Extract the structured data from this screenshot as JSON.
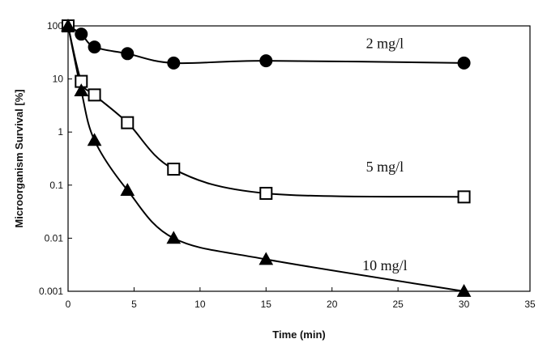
{
  "chart_data": {
    "type": "scatter",
    "title": "",
    "xlabel": "Time (min)",
    "ylabel": "Microorganism Survival [%]",
    "xlim": [
      0,
      35
    ],
    "ylim": [
      0.001,
      100
    ],
    "yscale": "log",
    "x_ticks": [
      "0",
      "5",
      "10",
      "15",
      "20",
      "25",
      "30",
      "35"
    ],
    "y_ticks": [
      "0.001",
      "0.01",
      "0.1",
      "1",
      "10",
      "100"
    ],
    "grid": false,
    "legend": "none",
    "series": [
      {
        "name": "2 mg/l",
        "marker": "circle-filled",
        "color": "#000000",
        "x": [
          0,
          1,
          2,
          4.5,
          8,
          15,
          30
        ],
        "y": [
          100,
          70,
          40,
          30,
          20,
          22,
          20
        ]
      },
      {
        "name": "5 mg/l",
        "marker": "square-open",
        "color": "#000000",
        "x": [
          0,
          1,
          2,
          4.5,
          8,
          15,
          30
        ],
        "y": [
          100,
          9,
          5,
          1.5,
          0.2,
          0.07,
          0.06
        ]
      },
      {
        "name": "10 mg/l",
        "marker": "triangle-filled",
        "color": "#000000",
        "x": [
          0,
          1,
          2,
          4.5,
          8,
          15,
          30
        ],
        "y": [
          100,
          6,
          0.7,
          0.08,
          0.01,
          0.004,
          0.001
        ]
      }
    ]
  }
}
